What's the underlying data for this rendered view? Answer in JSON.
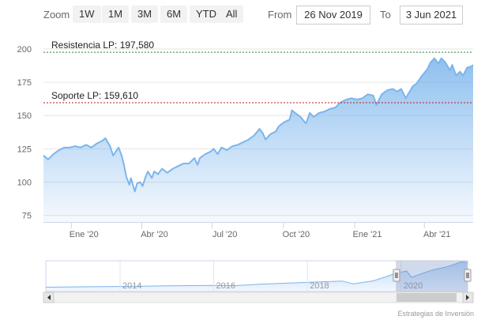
{
  "toolbar": {
    "zoom_label": "Zoom",
    "buttons": [
      "1W",
      "1M",
      "3M",
      "6M",
      "YTD",
      "All"
    ],
    "from_label": "From",
    "from_value": "26 Nov 2019",
    "to_label": "To",
    "to_value": "3 Jun 2021"
  },
  "colors": {
    "line": "#7cb5ec",
    "area_top": "#7cb5ec",
    "resistance": "#2e7d32",
    "support": "#b71c1c",
    "grid": "#e6e6e6"
  },
  "chart_data": {
    "type": "area",
    "ylim": [
      70,
      200
    ],
    "yticks": [
      75,
      100,
      125,
      150,
      175,
      200
    ],
    "xticks": [
      {
        "date": "2020-01-01",
        "label": "Ene '20"
      },
      {
        "date": "2020-04-01",
        "label": "Abr '20"
      },
      {
        "date": "2020-07-01",
        "label": "Jul '20"
      },
      {
        "date": "2020-10-01",
        "label": "Oct '20"
      },
      {
        "date": "2021-01-01",
        "label": "Ene '21"
      },
      {
        "date": "2021-04-01",
        "label": "Abr '21"
      }
    ],
    "x_range": [
      "2019-11-26",
      "2021-06-03"
    ],
    "series": [
      {
        "points": [
          [
            "2019-11-26",
            120
          ],
          [
            "2019-12-02",
            117
          ],
          [
            "2019-12-09",
            121
          ],
          [
            "2019-12-16",
            124
          ],
          [
            "2019-12-23",
            126
          ],
          [
            "2019-12-30",
            126
          ],
          [
            "2020-01-06",
            127
          ],
          [
            "2020-01-13",
            126
          ],
          [
            "2020-01-20",
            128
          ],
          [
            "2020-01-27",
            126
          ],
          [
            "2020-02-03",
            129
          ],
          [
            "2020-02-10",
            131
          ],
          [
            "2020-02-14",
            133
          ],
          [
            "2020-02-20",
            127
          ],
          [
            "2020-02-24",
            120
          ],
          [
            "2020-03-02",
            126
          ],
          [
            "2020-03-06",
            120
          ],
          [
            "2020-03-09",
            113
          ],
          [
            "2020-03-12",
            104
          ],
          [
            "2020-03-16",
            98
          ],
          [
            "2020-03-18",
            103
          ],
          [
            "2020-03-23",
            93
          ],
          [
            "2020-03-26",
            99
          ],
          [
            "2020-03-30",
            100
          ],
          [
            "2020-04-02",
            97
          ],
          [
            "2020-04-06",
            104
          ],
          [
            "2020-04-09",
            108
          ],
          [
            "2020-04-14",
            103
          ],
          [
            "2020-04-17",
            108
          ],
          [
            "2020-04-22",
            106
          ],
          [
            "2020-04-27",
            110
          ],
          [
            "2020-05-04",
            107
          ],
          [
            "2020-05-11",
            110
          ],
          [
            "2020-05-18",
            112
          ],
          [
            "2020-05-25",
            114
          ],
          [
            "2020-06-01",
            114
          ],
          [
            "2020-06-08",
            118
          ],
          [
            "2020-06-12",
            113
          ],
          [
            "2020-06-15",
            118
          ],
          [
            "2020-06-22",
            121
          ],
          [
            "2020-06-29",
            123
          ],
          [
            "2020-07-03",
            125
          ],
          [
            "2020-07-08",
            121
          ],
          [
            "2020-07-13",
            126
          ],
          [
            "2020-07-20",
            124
          ],
          [
            "2020-07-27",
            127
          ],
          [
            "2020-08-03",
            128
          ],
          [
            "2020-08-10",
            130
          ],
          [
            "2020-08-17",
            132
          ],
          [
            "2020-08-24",
            135
          ],
          [
            "2020-08-31",
            140
          ],
          [
            "2020-09-04",
            137
          ],
          [
            "2020-09-08",
            132
          ],
          [
            "2020-09-14",
            136
          ],
          [
            "2020-09-21",
            138
          ],
          [
            "2020-09-25",
            142
          ],
          [
            "2020-10-02",
            145
          ],
          [
            "2020-10-09",
            147
          ],
          [
            "2020-10-12",
            154
          ],
          [
            "2020-10-16",
            152
          ],
          [
            "2020-10-23",
            149
          ],
          [
            "2020-10-30",
            144
          ],
          [
            "2020-11-04",
            152
          ],
          [
            "2020-11-09",
            149
          ],
          [
            "2020-11-16",
            152
          ],
          [
            "2020-11-23",
            153
          ],
          [
            "2020-11-30",
            155
          ],
          [
            "2020-12-07",
            156
          ],
          [
            "2020-12-14",
            160
          ],
          [
            "2020-12-21",
            162
          ],
          [
            "2020-12-28",
            163
          ],
          [
            "2021-01-04",
            162
          ],
          [
            "2021-01-11",
            163
          ],
          [
            "2021-01-18",
            166
          ],
          [
            "2021-01-25",
            165
          ],
          [
            "2021-01-29",
            158
          ],
          [
            "2021-02-05",
            166
          ],
          [
            "2021-02-12",
            169
          ],
          [
            "2021-02-19",
            170
          ],
          [
            "2021-02-25",
            168
          ],
          [
            "2021-03-02",
            170
          ],
          [
            "2021-03-08",
            163
          ],
          [
            "2021-03-12",
            167
          ],
          [
            "2021-03-17",
            172
          ],
          [
            "2021-03-22",
            174
          ],
          [
            "2021-03-29",
            180
          ],
          [
            "2021-04-05",
            185
          ],
          [
            "2021-04-09",
            190
          ],
          [
            "2021-04-14",
            193
          ],
          [
            "2021-04-19",
            189
          ],
          [
            "2021-04-23",
            193
          ],
          [
            "2021-04-28",
            190
          ],
          [
            "2021-05-04",
            184
          ],
          [
            "2021-05-07",
            188
          ],
          [
            "2021-05-12",
            180
          ],
          [
            "2021-05-17",
            183
          ],
          [
            "2021-05-21",
            180
          ],
          [
            "2021-05-26",
            186
          ],
          [
            "2021-06-01",
            187
          ],
          [
            "2021-06-03",
            188
          ]
        ]
      }
    ],
    "annotations": [
      {
        "label": "Resistencia LP: 197,580",
        "value": 197.58
      },
      {
        "label": "Soporte LP: 159,610",
        "value": 159.61
      }
    ],
    "grid": true
  },
  "navigator": {
    "labels": [
      "2014",
      "2016",
      "2018",
      "2020"
    ],
    "series": [
      [
        "2012-06-01",
        28
      ],
      [
        "2013-01-01",
        30
      ],
      [
        "2014-01-01",
        33
      ],
      [
        "2015-01-01",
        37
      ],
      [
        "2016-01-01",
        40
      ],
      [
        "2016-06-01",
        38
      ],
      [
        "2017-01-01",
        48
      ],
      [
        "2018-01-01",
        60
      ],
      [
        "2018-10-01",
        68
      ],
      [
        "2018-12-24",
        50
      ],
      [
        "2019-06-01",
        70
      ],
      [
        "2019-11-26",
        120
      ],
      [
        "2020-02-14",
        133
      ],
      [
        "2020-03-23",
        93
      ],
      [
        "2020-08-31",
        140
      ],
      [
        "2021-01-01",
        163
      ],
      [
        "2021-04-14",
        193
      ],
      [
        "2021-06-03",
        188
      ]
    ],
    "window": [
      "2019-11-26",
      "2021-06-03"
    ]
  },
  "credit": "Estrategias de Inversión"
}
